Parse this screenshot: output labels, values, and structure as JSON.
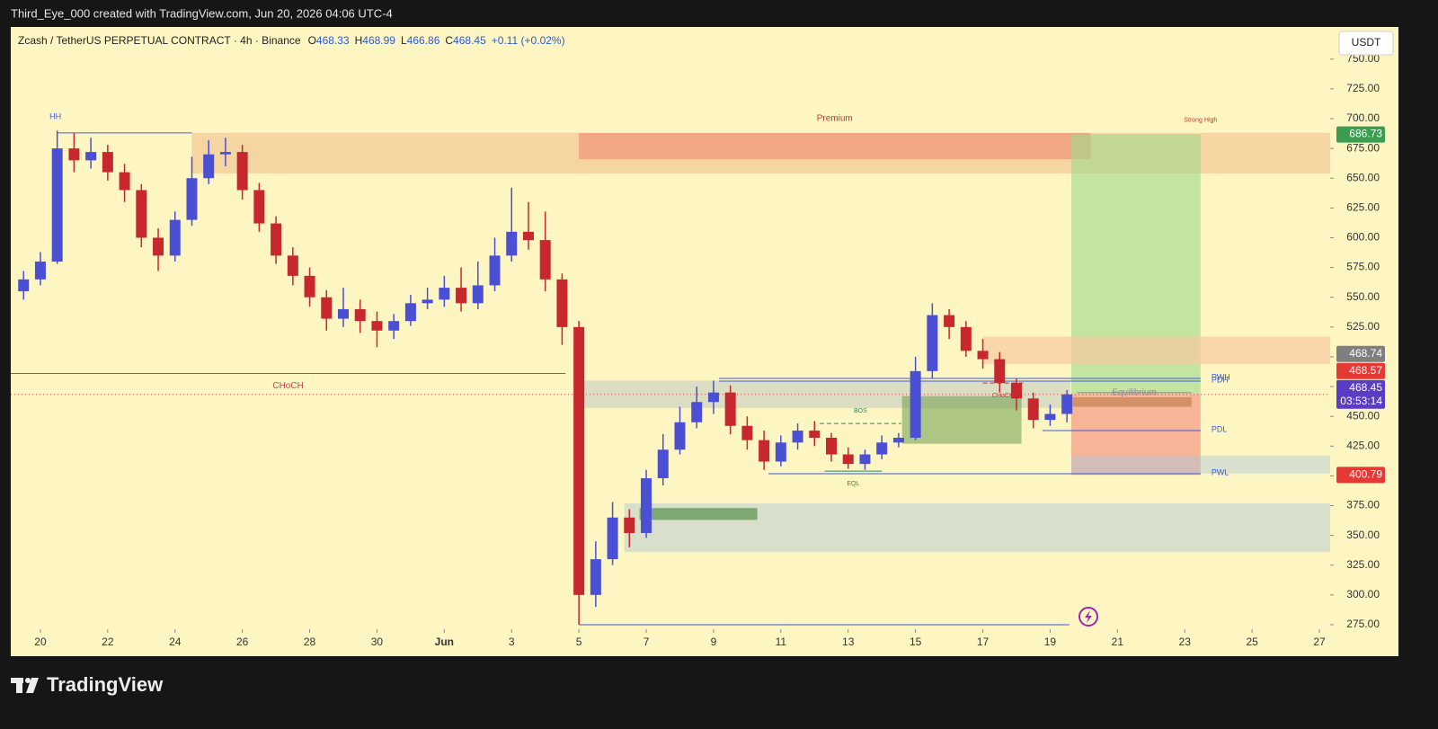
{
  "credit": "Third_Eye_000 created with TradingView.com, Jun 20, 2026 04:06 UTC-4",
  "brand": "TradingView",
  "chart_data": {
    "type": "candlestick",
    "title": "Zcash / TetherUS PERPETUAL CONTRACT · 4h · Binance",
    "ohlc": [
      {
        "key": "O",
        "value": 468.33
      },
      {
        "key": "H",
        "value": 468.99
      },
      {
        "key": "L",
        "value": 466.86
      },
      {
        "key": "C",
        "value": 468.45
      }
    ],
    "change": "+0.11 (+0.02%)",
    "currency": "USDT",
    "xlim": [
      -0.88,
      38.32
    ],
    "xticks": [
      {
        "value": 0,
        "label": "20"
      },
      {
        "value": 2,
        "label": "22"
      },
      {
        "value": 4,
        "label": "24"
      },
      {
        "value": 6,
        "label": "26"
      },
      {
        "value": 8,
        "label": "28"
      },
      {
        "value": 10,
        "label": "30"
      },
      {
        "value": 12,
        "label": "Jun"
      },
      {
        "value": 14,
        "label": "3"
      },
      {
        "value": 16,
        "label": "5"
      },
      {
        "value": 18,
        "label": "7"
      },
      {
        "value": 20,
        "label": "9"
      },
      {
        "value": 22,
        "label": "11"
      },
      {
        "value": 24,
        "label": "13"
      },
      {
        "value": 26,
        "label": "15"
      },
      {
        "value": 28,
        "label": "17"
      },
      {
        "value": 30,
        "label": "19"
      },
      {
        "value": 32,
        "label": "21"
      },
      {
        "value": 34,
        "label": "23"
      },
      {
        "value": 36,
        "label": "25"
      },
      {
        "value": 38,
        "label": "27"
      }
    ],
    "ylim": [
      271.2,
      777
    ],
    "yticks": [
      {
        "value": 750,
        "label": "750.00"
      },
      {
        "value": 725,
        "label": "725.00"
      },
      {
        "value": 700,
        "label": "700.00"
      },
      {
        "value": 675,
        "label": "675.00"
      },
      {
        "value": 650,
        "label": "650.00"
      },
      {
        "value": 625,
        "label": "625.00"
      },
      {
        "value": 600,
        "label": "600.00"
      },
      {
        "value": 575,
        "label": "575.00"
      },
      {
        "value": 550,
        "label": "550.00"
      },
      {
        "value": 525,
        "label": "525.00"
      },
      {
        "value": 500,
        "label": "500.00"
      },
      {
        "value": 475,
        "label": "475.00"
      },
      {
        "value": 450,
        "label": "450.00"
      },
      {
        "value": 425,
        "label": "425.00"
      },
      {
        "value": 400,
        "label": "400.00"
      },
      {
        "value": 375,
        "label": "375.00"
      },
      {
        "value": 350,
        "label": "350.00"
      },
      {
        "value": 325,
        "label": "325.00"
      },
      {
        "value": 300,
        "label": "300.00"
      },
      {
        "value": 275,
        "label": "275.00"
      }
    ],
    "candles": {
      "up_color": "#4a4fd3",
      "down_color": "#c7282e",
      "x": [
        -0.5,
        0,
        0.5,
        1,
        1.5,
        2,
        2.5,
        3,
        3.5,
        4,
        4.5,
        5,
        5.5,
        6,
        6.5,
        7,
        7.5,
        8,
        8.5,
        9,
        9.5,
        10,
        10.5,
        11,
        11.5,
        12,
        12.5,
        13,
        13.5,
        14,
        14.5,
        15,
        15.5,
        16,
        16.5,
        17,
        17.5,
        18,
        18.5,
        19,
        19.5,
        20,
        20.5,
        21,
        21.5,
        22,
        22.5,
        23,
        23.5,
        24,
        24.5,
        25,
        25.5,
        26,
        26.5,
        27,
        27.5,
        28,
        28.5,
        29,
        29.5,
        30,
        30.5
      ],
      "open": [
        555,
        565,
        580,
        675,
        665,
        672,
        655,
        640,
        600,
        585,
        615,
        650,
        670,
        672,
        640,
        612,
        585,
        568,
        550,
        532,
        540,
        530,
        522,
        530,
        545,
        548,
        558,
        545,
        560,
        585,
        605,
        598,
        565,
        525,
        300,
        330,
        365,
        352,
        398,
        422,
        445,
        462,
        470,
        442,
        430,
        412,
        428,
        438,
        432,
        418,
        410,
        418,
        428,
        432,
        488,
        535,
        525,
        505,
        498,
        478,
        465,
        447,
        452
      ],
      "high": [
        572,
        588,
        690,
        688,
        684,
        678,
        662,
        645,
        608,
        622,
        668,
        682,
        684,
        678,
        646,
        618,
        592,
        575,
        556,
        558,
        548,
        538,
        536,
        552,
        558,
        568,
        575,
        580,
        600,
        642,
        630,
        622,
        570,
        530,
        345,
        378,
        372,
        405,
        435,
        458,
        475,
        480,
        476,
        450,
        438,
        434,
        444,
        446,
        436,
        424,
        422,
        434,
        436,
        500,
        545,
        540,
        530,
        515,
        504,
        482,
        470,
        460,
        472
      ],
      "low": [
        548,
        560,
        578,
        655,
        658,
        648,
        630,
        592,
        572,
        580,
        610,
        645,
        660,
        632,
        605,
        578,
        560,
        542,
        522,
        525,
        520,
        508,
        515,
        526,
        540,
        542,
        538,
        540,
        555,
        580,
        590,
        555,
        510,
        275,
        290,
        325,
        340,
        348,
        392,
        418,
        440,
        452,
        435,
        422,
        405,
        408,
        422,
        425,
        412,
        406,
        405,
        414,
        424,
        430,
        482,
        515,
        500,
        490,
        470,
        455,
        440,
        442,
        445
      ],
      "close": [
        565,
        580,
        675,
        665,
        672,
        655,
        640,
        600,
        585,
        615,
        650,
        670,
        672,
        640,
        612,
        585,
        568,
        550,
        532,
        540,
        530,
        522,
        530,
        545,
        548,
        558,
        545,
        560,
        585,
        605,
        598,
        565,
        525,
        300,
        330,
        365,
        352,
        398,
        422,
        445,
        462,
        470,
        442,
        430,
        412,
        428,
        438,
        432,
        418,
        410,
        418,
        428,
        432,
        488,
        535,
        525,
        505,
        498,
        478,
        465,
        447,
        452,
        468.45
      ]
    },
    "zones": [
      {
        "x0": 4.5,
        "x1": 38.32,
        "top": 688,
        "bottom": 654,
        "color": "#eeb985",
        "opacity": 0.55
      },
      {
        "x0": 16,
        "x1": 31.2,
        "top": 688,
        "bottom": 666,
        "color": "#f08872",
        "opacity": 0.6,
        "label": "Premium",
        "label_pos": "above"
      },
      {
        "x0": 30.63,
        "x1": 34.47,
        "top": 686.73,
        "bottom": 468.57,
        "color": "#9fd98a",
        "opacity": 0.6,
        "label": "Strong High",
        "label_pos": "above-end"
      },
      {
        "x0": 30.63,
        "x1": 34.47,
        "top": 468.57,
        "bottom": 400.79,
        "color": "#f5907f",
        "opacity": 0.65
      },
      {
        "x0": 28,
        "x1": 38.32,
        "top": 517,
        "bottom": 494,
        "color": "#f6c9a3",
        "opacity": 0.7
      },
      {
        "x0": 16,
        "x1": 30.6,
        "top": 480,
        "bottom": 457,
        "color": "#b4c2c6",
        "opacity": 0.45
      },
      {
        "x0": 25.6,
        "x1": 29.15,
        "top": 467,
        "bottom": 427,
        "color": "#6e9e4e",
        "opacity": 0.55
      },
      {
        "x0": 17.35,
        "x1": 38.32,
        "top": 377,
        "bottom": 336,
        "color": "#9fc0d8",
        "opacity": 0.4
      },
      {
        "x0": 30.63,
        "x1": 38.32,
        "top": 417,
        "bottom": 402,
        "color": "#a8c8dc",
        "opacity": 0.45
      },
      {
        "x0": 17.8,
        "x1": 21.3,
        "top": 373,
        "bottom": 363,
        "color": "#4f8a45",
        "opacity": 0.65
      },
      {
        "x0": 30.67,
        "x1": 34.2,
        "top": 466,
        "bottom": 458,
        "color": "#b97a48",
        "opacity": 0.6
      }
    ],
    "levels": [
      {
        "value": 688,
        "x0": 0.5,
        "x1": 4.5,
        "color": "#4a5fd0",
        "style": "solid",
        "label": "HH",
        "label_pos": "above-start"
      },
      {
        "value": 486,
        "x0": -0.88,
        "x1": 15.6,
        "color": "#b84a4a",
        "style": "solid",
        "label": "CHoCH",
        "label_pos": "below"
      },
      {
        "value": 481.8,
        "x0": 20.16,
        "x1": 34.47,
        "color": "#3b5bdb",
        "style": "solid",
        "label": "PWH",
        "label_pos": "right"
      },
      {
        "value": 479.6,
        "x0": 20.16,
        "x1": 34.47,
        "color": "#3b5bdb",
        "style": "solid",
        "label": "PDH",
        "label_pos": "right"
      },
      {
        "value": 438,
        "x0": 29.77,
        "x1": 34.47,
        "color": "#3b5bdb",
        "style": "solid",
        "label": "PDL",
        "label_pos": "right"
      },
      {
        "value": 401.8,
        "x0": 21.63,
        "x1": 34.47,
        "color": "#3b5bdb",
        "style": "solid",
        "label": "PWL",
        "label_pos": "right"
      },
      {
        "value": 275,
        "x0": 16,
        "x1": 30.57,
        "color": "#3b5bdb",
        "style": "solid"
      },
      {
        "value": 444,
        "x0": 23.15,
        "x1": 25.58,
        "color": "#2e8b57",
        "style": "dashed",
        "label": "BOS",
        "label_pos": "above"
      },
      {
        "value": 404,
        "x0": 23.3,
        "x1": 25,
        "color": "#2e8b57",
        "style": "solid",
        "label": "EQL",
        "label_pos": "below"
      },
      {
        "value": 478,
        "x0": 28,
        "x1": 29.2,
        "color": "#c0392b",
        "style": "dashed",
        "label": "CHoCH",
        "label_pos": "below"
      },
      {
        "value": 469.8,
        "x0": 30.8,
        "x1": 34.2,
        "color": "#8a8a8a",
        "style": "solid",
        "label": "Equilibrium",
        "label_pos": "center"
      },
      {
        "value": 468.45,
        "x0": -0.88,
        "x1": 38.32,
        "color": "#b84a4a",
        "style": "dotted"
      }
    ],
    "price_tags": [
      {
        "value": 686.73,
        "color": "#3a9d4f"
      },
      {
        "value": 468.74,
        "color": "#7f7f7f"
      },
      {
        "value": 468.57,
        "color": "#e53935"
      },
      {
        "value": 468.45,
        "color": "#5b3cc4",
        "countdown": "03:53:14"
      },
      {
        "value": 400.79,
        "color": "#e53935"
      }
    ]
  }
}
